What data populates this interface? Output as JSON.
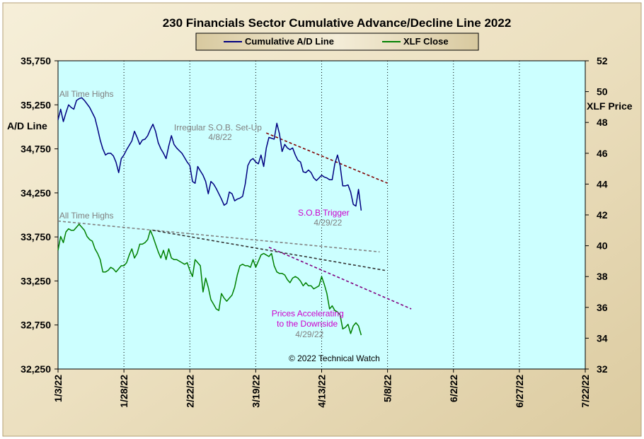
{
  "chart_data": {
    "type": "line",
    "title": "230 Financials  Sector Cumulative  Advance/Decline  Line 2022",
    "y_left_label": "A/D Line",
    "y_right_label": "XLF Price",
    "y_left_range": [
      32250,
      35750
    ],
    "y_right_range": [
      32,
      52
    ],
    "y_left_ticks": [
      "35,750",
      "35,250",
      "34,750",
      "34,250",
      "33,750",
      "33,250",
      "32,750",
      "32,250"
    ],
    "y_right_ticks": [
      "52",
      "50",
      "48",
      "46",
      "44",
      "42",
      "40",
      "38",
      "36",
      "34",
      "32"
    ],
    "x_ticks": [
      "1/3/22",
      "1/28/22",
      "2/22/22",
      "3/19/22",
      "4/13/22",
      "5/8/22",
      "6/2/22",
      "6/27/22",
      "7/22/22"
    ],
    "x_tick_days": [
      0,
      25,
      50,
      75,
      100,
      125,
      150,
      175,
      200
    ],
    "x_range_days": [
      0,
      200
    ],
    "grid": "vertical dotted at x ticks",
    "legend_position": "top-center",
    "colors": {
      "background": "#ccffff",
      "frame": "#ede2c4",
      "ad_line": "#000080",
      "xlf_line": "#008000",
      "trend_dark_red": "#800000",
      "trend_gray": "#808080",
      "trend_dark": "#333333",
      "trend_purple": "#800080",
      "annotation_gray": "#808080",
      "annotation_magenta": "#cc00cc"
    },
    "series": [
      {
        "name": "Cumulative A/D Line",
        "axis": "left",
        "points": [
          [
            0,
            35080
          ],
          [
            1,
            35200
          ],
          [
            2,
            35060
          ],
          [
            3,
            35160
          ],
          [
            4,
            35250
          ],
          [
            5,
            35220
          ],
          [
            6,
            35200
          ],
          [
            7,
            35300
          ],
          [
            8,
            35320
          ],
          [
            9,
            35330
          ],
          [
            10,
            35300
          ],
          [
            12,
            35220
          ],
          [
            14,
            35100
          ],
          [
            15,
            34980
          ],
          [
            16,
            34850
          ],
          [
            17,
            34750
          ],
          [
            18,
            34680
          ],
          [
            19,
            34700
          ],
          [
            20,
            34700
          ],
          [
            21,
            34670
          ],
          [
            22,
            34600
          ],
          [
            23,
            34480
          ],
          [
            24,
            34640
          ],
          [
            25,
            34680
          ],
          [
            26,
            34740
          ],
          [
            27,
            34790
          ],
          [
            28,
            34840
          ],
          [
            29,
            34950
          ],
          [
            30,
            34880
          ],
          [
            31,
            34800
          ],
          [
            32,
            34850
          ],
          [
            33,
            34860
          ],
          [
            34,
            34900
          ],
          [
            35,
            34970
          ],
          [
            36,
            35030
          ],
          [
            37,
            34950
          ],
          [
            38,
            34820
          ],
          [
            39,
            34750
          ],
          [
            40,
            34700
          ],
          [
            41,
            34640
          ],
          [
            42,
            34780
          ],
          [
            43,
            34900
          ],
          [
            44,
            34800
          ],
          [
            45,
            34760
          ],
          [
            46,
            34730
          ],
          [
            47,
            34700
          ],
          [
            48,
            34650
          ],
          [
            49,
            34600
          ],
          [
            50,
            34560
          ],
          [
            51,
            34380
          ],
          [
            52,
            34360
          ],
          [
            53,
            34550
          ],
          [
            54,
            34500
          ],
          [
            55,
            34450
          ],
          [
            56,
            34380
          ],
          [
            57,
            34240
          ],
          [
            58,
            34380
          ],
          [
            59,
            34350
          ],
          [
            60,
            34300
          ],
          [
            61,
            34240
          ],
          [
            62,
            34180
          ],
          [
            63,
            34110
          ],
          [
            64,
            34130
          ],
          [
            65,
            34260
          ],
          [
            66,
            34240
          ],
          [
            67,
            34160
          ],
          [
            68,
            34180
          ],
          [
            69,
            34190
          ],
          [
            70,
            34210
          ],
          [
            71,
            34350
          ],
          [
            72,
            34560
          ],
          [
            73,
            34620
          ],
          [
            74,
            34640
          ],
          [
            75,
            34600
          ],
          [
            76,
            34580
          ],
          [
            77,
            34680
          ],
          [
            78,
            34550
          ],
          [
            79,
            34760
          ],
          [
            80,
            34880
          ],
          [
            81,
            34870
          ],
          [
            82,
            34860
          ],
          [
            83,
            35040
          ],
          [
            84,
            34920
          ],
          [
            85,
            34720
          ],
          [
            86,
            34800
          ],
          [
            87,
            34760
          ],
          [
            88,
            34740
          ],
          [
            89,
            34760
          ],
          [
            90,
            34680
          ],
          [
            91,
            34620
          ],
          [
            92,
            34600
          ],
          [
            93,
            34490
          ],
          [
            94,
            34480
          ],
          [
            95,
            34510
          ],
          [
            96,
            34480
          ],
          [
            97,
            34420
          ],
          [
            98,
            34390
          ],
          [
            99,
            34420
          ],
          [
            100,
            34450
          ],
          [
            101,
            34430
          ],
          [
            102,
            34420
          ],
          [
            103,
            34400
          ],
          [
            104,
            34400
          ],
          [
            105,
            34580
          ],
          [
            106,
            34680
          ],
          [
            107,
            34560
          ],
          [
            108,
            34330
          ],
          [
            109,
            34330
          ],
          [
            110,
            34340
          ],
          [
            111,
            34260
          ],
          [
            112,
            34120
          ],
          [
            113,
            34100
          ],
          [
            114,
            34290
          ],
          [
            115,
            34050
          ]
        ]
      },
      {
        "name": "XLF Close",
        "axis": "right",
        "points": [
          [
            0,
            39.7
          ],
          [
            1,
            40.6
          ],
          [
            2,
            40.2
          ],
          [
            3,
            40.9
          ],
          [
            4,
            41.1
          ],
          [
            5,
            41.0
          ],
          [
            6,
            41.0
          ],
          [
            7,
            41.2
          ],
          [
            8,
            41.4
          ],
          [
            9,
            41.2
          ],
          [
            10,
            41.0
          ],
          [
            11,
            40.6
          ],
          [
            12,
            40.4
          ],
          [
            13,
            40.3
          ],
          [
            14,
            39.8
          ],
          [
            15,
            39.5
          ],
          [
            16,
            39.1
          ],
          [
            17,
            38.3
          ],
          [
            18,
            38.3
          ],
          [
            19,
            38.4
          ],
          [
            20,
            38.6
          ],
          [
            21,
            38.5
          ],
          [
            22,
            38.3
          ],
          [
            23,
            38.5
          ],
          [
            24,
            38.7
          ],
          [
            25,
            38.7
          ],
          [
            26,
            38.9
          ],
          [
            27,
            39.4
          ],
          [
            28,
            39.8
          ],
          [
            29,
            39.2
          ],
          [
            30,
            39.5
          ],
          [
            31,
            40.1
          ],
          [
            32,
            40.1
          ],
          [
            33,
            40.2
          ],
          [
            34,
            40.4
          ],
          [
            35,
            41.0
          ],
          [
            36,
            40.6
          ],
          [
            37,
            40.1
          ],
          [
            38,
            39.6
          ],
          [
            39,
            39.2
          ],
          [
            40,
            39.7
          ],
          [
            41,
            39.1
          ],
          [
            42,
            39.8
          ],
          [
            43,
            39.2
          ],
          [
            44,
            39.1
          ],
          [
            45,
            39.1
          ],
          [
            46,
            39.0
          ],
          [
            47,
            38.9
          ],
          [
            48,
            38.8
          ],
          [
            49,
            38.9
          ],
          [
            50,
            38.4
          ],
          [
            51,
            38.0
          ],
          [
            52,
            39.1
          ],
          [
            53,
            38.9
          ],
          [
            54,
            38.7
          ],
          [
            55,
            37.0
          ],
          [
            56,
            37.9
          ],
          [
            57,
            37.3
          ],
          [
            58,
            36.5
          ],
          [
            59,
            36.2
          ],
          [
            60,
            35.9
          ],
          [
            61,
            35.8
          ],
          [
            62,
            36.9
          ],
          [
            63,
            36.6
          ],
          [
            64,
            36.4
          ],
          [
            65,
            36.6
          ],
          [
            66,
            36.8
          ],
          [
            67,
            37.3
          ],
          [
            68,
            38.1
          ],
          [
            69,
            38.7
          ],
          [
            70,
            38.8
          ],
          [
            71,
            38.7
          ],
          [
            72,
            38.7
          ],
          [
            73,
            38.6
          ],
          [
            74,
            39.1
          ],
          [
            75,
            38.6
          ],
          [
            76,
            39.0
          ],
          [
            77,
            39.4
          ],
          [
            78,
            39.5
          ],
          [
            79,
            39.4
          ],
          [
            80,
            39.3
          ],
          [
            81,
            39.5
          ],
          [
            82,
            38.7
          ],
          [
            83,
            38.3
          ],
          [
            84,
            38.2
          ],
          [
            85,
            38.2
          ],
          [
            86,
            38.1
          ],
          [
            87,
            37.8
          ],
          [
            88,
            37.6
          ],
          [
            89,
            37.9
          ],
          [
            90,
            38.0
          ],
          [
            91,
            37.9
          ],
          [
            92,
            37.7
          ],
          [
            93,
            37.4
          ],
          [
            94,
            37.6
          ],
          [
            95,
            37.4
          ],
          [
            96,
            37.4
          ],
          [
            97,
            37.2
          ],
          [
            98,
            37.3
          ],
          [
            99,
            37.4
          ],
          [
            100,
            38.0
          ],
          [
            101,
            37.5
          ],
          [
            102,
            36.9
          ],
          [
            103,
            35.9
          ],
          [
            104,
            36.1
          ],
          [
            105,
            35.8
          ],
          [
            106,
            35.7
          ],
          [
            107,
            35.5
          ],
          [
            108,
            34.6
          ],
          [
            109,
            34.7
          ],
          [
            110,
            34.9
          ],
          [
            111,
            34.3
          ],
          [
            112,
            34.8
          ],
          [
            113,
            35.0
          ],
          [
            114,
            34.8
          ],
          [
            115,
            34.2
          ]
        ]
      }
    ],
    "trendlines": [
      {
        "axis": "left",
        "color": "#800000",
        "points": [
          [
            79,
            34930
          ],
          [
            125,
            34360
          ]
        ]
      },
      {
        "axis": "right",
        "color": "#808080",
        "points": [
          [
            0,
            41.6
          ],
          [
            122,
            39.6
          ]
        ]
      },
      {
        "axis": "right",
        "color": "#333333",
        "points": [
          [
            36,
            41.0
          ],
          [
            124,
            38.4
          ]
        ]
      },
      {
        "axis": "right",
        "color": "#800080",
        "points": [
          [
            80,
            39.9
          ],
          [
            134,
            35.9
          ]
        ]
      }
    ],
    "annotations": [
      {
        "text": "All Time Highs",
        "x": 0.5,
        "y_left": 35340,
        "class": "anno-gray"
      },
      {
        "text": "Irregular  S.O.B. Set-Up",
        "x": 44,
        "y_left": 34960,
        "class": "anno-gray"
      },
      {
        "text": "4/8/22",
        "x": 57,
        "y_left": 34850,
        "class": "anno-gray"
      },
      {
        "text": "S.O.B  Trigger",
        "x": 91,
        "y_left": 33990,
        "class": "anno-mag"
      },
      {
        "text": "4/29/22",
        "x": 97,
        "y_left": 33880,
        "class": "anno-gray"
      },
      {
        "text": "All Time Highs",
        "x": 0.5,
        "y_left": 33960,
        "class": "anno-gray"
      },
      {
        "text": "Prices Accelerating",
        "x": 81,
        "y_left": 32850,
        "class": "anno-mag"
      },
      {
        "text": "to the Downside",
        "x": 83,
        "y_left": 32730,
        "class": "anno-mag"
      },
      {
        "text": "4/29/22",
        "x": 90,
        "y_left": 32610,
        "class": "anno-gray"
      },
      {
        "text": "© 2022 Technical Watch",
        "x": 87.5,
        "y_left": 32340,
        "class": "anno-dark"
      }
    ]
  }
}
